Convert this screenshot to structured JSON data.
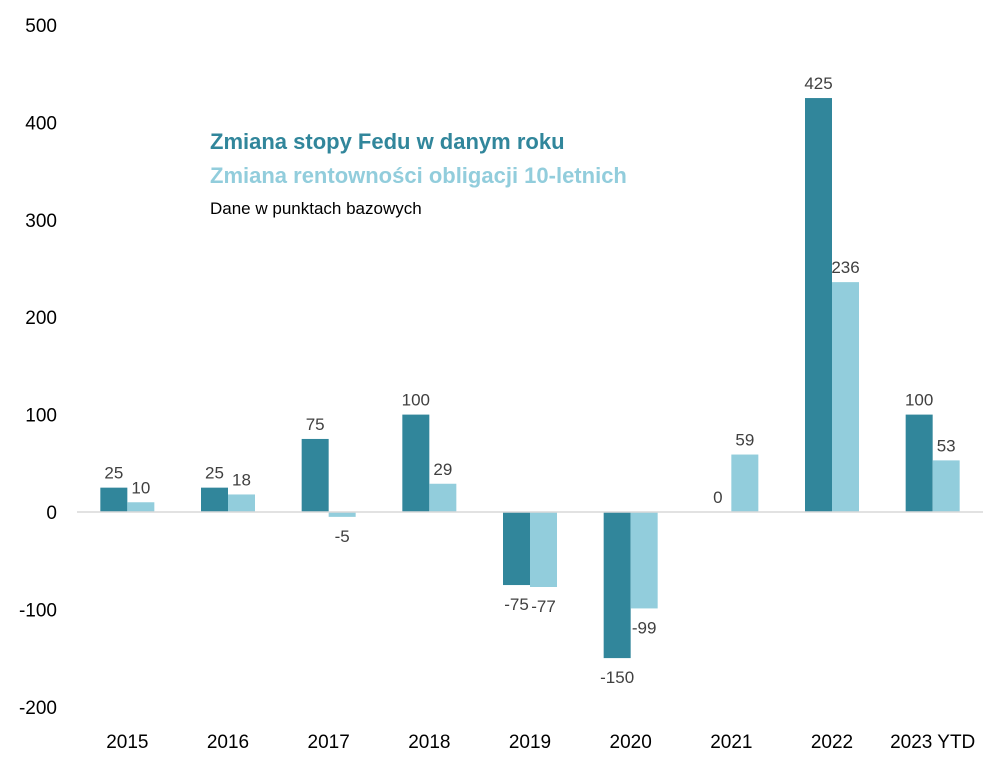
{
  "chart_data": {
    "type": "bar",
    "title": "",
    "categories": [
      "2015",
      "2016",
      "2017",
      "2018",
      "2019",
      "2020",
      "2021",
      "2022",
      "2023 YTD"
    ],
    "series": [
      {
        "name": "Zmiana stopy Fedu w danym roku",
        "color": "#31869B",
        "values": [
          25,
          25,
          75,
          100,
          -75,
          -150,
          0,
          425,
          100
        ]
      },
      {
        "name": "Zmiana rentowności obligacji 10-letnich",
        "color": "#92CDDC",
        "values": [
          10,
          18,
          -5,
          29,
          -77,
          -99,
          59,
          236,
          53
        ]
      }
    ],
    "note": "Dane w punktach bazowych",
    "xlabel": "",
    "ylabel": "",
    "ylim": [
      -200,
      500
    ],
    "yticks": [
      -200,
      -100,
      0,
      100,
      200,
      300,
      400,
      500
    ],
    "grid": false,
    "legend_placement": "top-left"
  }
}
